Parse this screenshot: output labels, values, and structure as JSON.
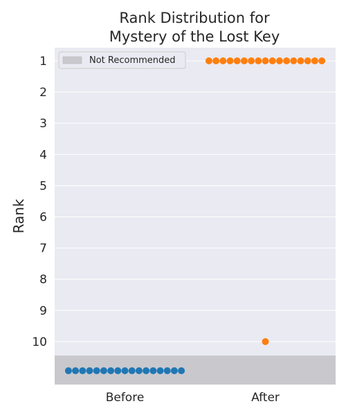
{
  "chart_data": {
    "type": "scatter",
    "title_lines": [
      "Rank Distribution for",
      "Mystery of the Lost Key"
    ],
    "xlabel": "",
    "ylabel": "Rank",
    "categories": [
      "Before",
      "After"
    ],
    "y_ticks": [
      1,
      2,
      3,
      4,
      5,
      6,
      7,
      8,
      9,
      10
    ],
    "y_inverted": true,
    "grid": true,
    "background_color": "#eaeaf2",
    "not_recommended_band": {
      "label": "Not Recommended",
      "color": "#c9c8cd"
    },
    "legend": {
      "placement": "top-left",
      "entries": [
        "Not Recommended"
      ]
    },
    "series": [
      {
        "category": "Before",
        "color": "#1f77b4",
        "points": [
          {
            "rank": "Not Recommended",
            "count": 17
          }
        ]
      },
      {
        "category": "After",
        "color": "#ff7f0e",
        "points": [
          {
            "rank": 1,
            "count": 17
          },
          {
            "rank": 10,
            "count": 1
          }
        ]
      }
    ]
  }
}
